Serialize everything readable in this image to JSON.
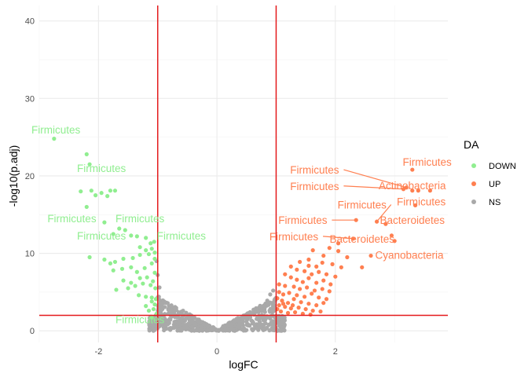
{
  "chart_data": {
    "type": "scatter",
    "xlabel": "logFC",
    "ylabel": "-log10(p.adj)",
    "xlim": [
      -3.0,
      3.9
    ],
    "ylim": [
      -1.5,
      42
    ],
    "x_ticks": [
      -2,
      0,
      2
    ],
    "y_ticks": [
      0,
      10,
      20,
      30,
      40
    ],
    "grid": true,
    "thresholds": {
      "logFC": [
        -1,
        1
      ],
      "neg_log10_padj": 2,
      "color": "#e41a1c"
    },
    "legend": {
      "title": "DA",
      "position": "right",
      "entries": [
        {
          "label": "DOWN",
          "color": "#90EE90"
        },
        {
          "label": "UP",
          "color": "#FF7F50"
        },
        {
          "label": "NS",
          "color": "#A9A9A9"
        }
      ]
    },
    "series": [
      {
        "name": "DOWN",
        "color": "#90EE90",
        "points": [
          [
            -2.75,
            24.8
          ],
          [
            -2.2,
            22.8
          ],
          [
            -2.15,
            21.5
          ],
          [
            -2.3,
            18.0
          ],
          [
            -2.12,
            18.1
          ],
          [
            -2.05,
            17.5
          ],
          [
            -1.95,
            17.8
          ],
          [
            -1.85,
            17.4
          ],
          [
            -1.8,
            18.1
          ],
          [
            -1.72,
            18.1
          ],
          [
            -2.2,
            16.0
          ],
          [
            -1.9,
            14.0
          ],
          [
            -1.75,
            12.5
          ],
          [
            -1.65,
            13.2
          ],
          [
            -1.55,
            13.0
          ],
          [
            -1.45,
            12.3
          ],
          [
            -1.35,
            12.2
          ],
          [
            -1.2,
            12.0
          ],
          [
            -1.12,
            11.3
          ],
          [
            -1.06,
            11.5
          ],
          [
            -1.3,
            10.8
          ],
          [
            -1.2,
            10.4
          ],
          [
            -1.1,
            10.6
          ],
          [
            -1.05,
            10.1
          ],
          [
            -2.15,
            9.5
          ],
          [
            -1.9,
            9.2
          ],
          [
            -1.8,
            8.7
          ],
          [
            -1.72,
            8.9
          ],
          [
            -1.58,
            9.3
          ],
          [
            -1.42,
            9.4
          ],
          [
            -1.3,
            9.8
          ],
          [
            -1.15,
            9.9
          ],
          [
            -1.05,
            9.3
          ],
          [
            -1.75,
            7.8
          ],
          [
            -1.6,
            8.0
          ],
          [
            -1.45,
            8.2
          ],
          [
            -1.35,
            7.6
          ],
          [
            -1.22,
            8.1
          ],
          [
            -1.1,
            8.7
          ],
          [
            -1.05,
            7.5
          ],
          [
            -1.58,
            6.5
          ],
          [
            -1.45,
            6.2
          ],
          [
            -1.3,
            6.8
          ],
          [
            -1.18,
            6.9
          ],
          [
            -1.08,
            6.4
          ],
          [
            -1.7,
            5.3
          ],
          [
            -1.5,
            5.5
          ],
          [
            -1.38,
            5.8
          ],
          [
            -1.25,
            6.1
          ],
          [
            -1.12,
            5.9
          ],
          [
            -1.04,
            5.5
          ],
          [
            -1.32,
            4.6
          ],
          [
            -1.2,
            4.4
          ],
          [
            -1.1,
            4.3
          ],
          [
            -1.03,
            4.1
          ],
          [
            -1.2,
            3.2
          ],
          [
            -1.1,
            3.8
          ],
          [
            -1.05,
            3.4
          ],
          [
            -1.15,
            2.6
          ],
          [
            -1.07,
            2.8
          ],
          [
            -1.1,
            1.7
          ],
          [
            -1.02,
            2.2
          ]
        ]
      },
      {
        "name": "UP",
        "color": "#FF7F50",
        "points": [
          [
            3.3,
            20.8
          ],
          [
            3.2,
            18.5
          ],
          [
            3.15,
            18.3
          ],
          [
            3.3,
            18.1
          ],
          [
            3.4,
            18.1
          ],
          [
            3.6,
            18.1
          ],
          [
            3.35,
            16.2
          ],
          [
            2.35,
            14.3
          ],
          [
            2.7,
            14.1
          ],
          [
            2.85,
            13.8
          ],
          [
            2.95,
            12.3
          ],
          [
            3.0,
            11.6
          ],
          [
            2.3,
            11.9
          ],
          [
            2.05,
            11.3
          ],
          [
            1.62,
            10.4
          ],
          [
            1.9,
            10.7
          ],
          [
            2.05,
            10.3
          ],
          [
            1.8,
            9.7
          ],
          [
            1.55,
            9.2
          ],
          [
            2.2,
            9.5
          ],
          [
            2.45,
            8.2
          ],
          [
            2.6,
            9.7
          ],
          [
            1.4,
            8.9
          ],
          [
            1.55,
            8.4
          ],
          [
            1.68,
            8.3
          ],
          [
            1.78,
            8.8
          ],
          [
            1.95,
            8.6
          ],
          [
            2.1,
            8.2
          ],
          [
            1.25,
            8.3
          ],
          [
            1.35,
            7.9
          ],
          [
            1.48,
            7.7
          ],
          [
            1.6,
            7.3
          ],
          [
            1.72,
            7.6
          ],
          [
            1.85,
            7.3
          ],
          [
            2.0,
            7.0
          ],
          [
            1.15,
            7.3
          ],
          [
            1.25,
            6.9
          ],
          [
            1.35,
            6.6
          ],
          [
            1.45,
            6.3
          ],
          [
            1.55,
            6.8
          ],
          [
            1.68,
            6.2
          ],
          [
            1.8,
            6.5
          ],
          [
            1.92,
            6.0
          ],
          [
            1.05,
            6.0
          ],
          [
            1.15,
            5.8
          ],
          [
            1.3,
            5.7
          ],
          [
            1.4,
            5.4
          ],
          [
            1.52,
            5.6
          ],
          [
            1.65,
            5.2
          ],
          [
            1.78,
            5.4
          ],
          [
            1.9,
            5.1
          ],
          [
            1.05,
            5.0
          ],
          [
            1.12,
            4.7
          ],
          [
            1.22,
            4.9
          ],
          [
            1.35,
            4.6
          ],
          [
            1.48,
            4.4
          ],
          [
            1.6,
            4.8
          ],
          [
            1.72,
            4.3
          ],
          [
            1.85,
            4.1
          ],
          [
            1.02,
            4.2
          ],
          [
            1.1,
            3.9
          ],
          [
            1.2,
            3.6
          ],
          [
            1.3,
            4.1
          ],
          [
            1.42,
            3.7
          ],
          [
            1.55,
            3.5
          ],
          [
            1.68,
            3.3
          ],
          [
            1.8,
            3.6
          ],
          [
            1.05,
            3.3
          ],
          [
            1.15,
            3.1
          ],
          [
            1.25,
            2.9
          ],
          [
            1.38,
            3.0
          ],
          [
            1.5,
            2.8
          ],
          [
            1.62,
            2.6
          ],
          [
            1.75,
            2.5
          ],
          [
            1.08,
            2.5
          ],
          [
            1.2,
            2.3
          ],
          [
            1.32,
            2.4
          ],
          [
            1.45,
            2.2
          ],
          [
            1.58,
            2.1
          ],
          [
            1.02,
            2.8
          ],
          [
            1.12,
            3.5
          ],
          [
            1.28,
            3.3
          ]
        ]
      }
    ],
    "ns_series": {
      "name": "NS",
      "color": "#A9A9A9",
      "description_note": ""
    },
    "annotations": [
      {
        "text": "Firmicutes",
        "series": "DOWN",
        "point": [
          -2.75,
          24.8
        ],
        "label": [
          -2.72,
          26.0
        ]
      },
      {
        "text": "Firmicutes",
        "series": "DOWN",
        "point": [
          -2.2,
          22.8
        ],
        "label": [
          -1.95,
          21.0
        ]
      },
      {
        "text": "Firmicutes",
        "series": "DOWN",
        "point": [
          -1.9,
          14.0
        ],
        "label": [
          -2.45,
          14.5
        ]
      },
      {
        "text": "Firmicutes",
        "series": "DOWN",
        "point": [
          -1.65,
          13.2
        ],
        "label": [
          -1.3,
          14.5
        ]
      },
      {
        "text": "Firmicutes",
        "series": "DOWN",
        "point": [
          -1.75,
          12.5
        ],
        "label": [
          -1.95,
          12.3
        ]
      },
      {
        "text": "Firmicutes",
        "series": "DOWN",
        "point": [
          -1.05,
          11.5
        ],
        "label": [
          -0.6,
          12.3
        ]
      },
      {
        "text": "Firmicutes",
        "series": "DOWN",
        "point": [
          -1.1,
          1.7
        ],
        "label": [
          -1.3,
          1.5
        ]
      },
      {
        "text": "Firmicutes",
        "series": "UP",
        "point": [
          3.3,
          20.8
        ],
        "label": [
          3.55,
          21.8
        ],
        "leader": false
      },
      {
        "text": "Firmicutes",
        "series": "UP",
        "point": [
          3.2,
          18.5
        ],
        "label": [
          1.65,
          20.8
        ],
        "leader": true
      },
      {
        "text": "Actinobacteria",
        "series": "UP",
        "point": [
          3.4,
          18.1
        ],
        "label": [
          3.3,
          18.8
        ],
        "leader": false
      },
      {
        "text": "Firmicutes",
        "series": "UP",
        "point": [
          3.15,
          18.3
        ],
        "label": [
          1.65,
          18.7
        ],
        "leader": true
      },
      {
        "text": "Firmicutes",
        "series": "UP",
        "point": [
          3.35,
          16.2
        ],
        "label": [
          3.45,
          19.0
        ],
        "leader": false,
        "label_y_override": 16.7
      },
      {
        "text": "Firmicutes",
        "series": "UP",
        "point": [
          2.7,
          14.1
        ],
        "label": [
          2.45,
          16.3
        ],
        "leader": true
      },
      {
        "text": "Firmicutes",
        "series": "UP",
        "point": [
          2.35,
          14.3
        ],
        "label": [
          1.45,
          14.3
        ],
        "leader": true
      },
      {
        "text": "Bacteroidetes",
        "series": "UP",
        "point": [
          2.85,
          13.8
        ],
        "label": [
          3.3,
          14.3
        ],
        "leader": false
      },
      {
        "text": "Firmicutes",
        "series": "UP",
        "point": [
          2.3,
          11.9
        ],
        "label": [
          1.3,
          12.2
        ],
        "leader": true
      },
      {
        "text": "Bacteroidetes",
        "series": "UP",
        "point": [
          2.95,
          12.3
        ],
        "label": [
          2.45,
          11.9
        ],
        "leader": false
      },
      {
        "text": "Cyanobacteria",
        "series": "UP",
        "point": [
          3.0,
          11.6
        ],
        "label": [
          3.25,
          9.8
        ],
        "leader": false
      }
    ]
  }
}
